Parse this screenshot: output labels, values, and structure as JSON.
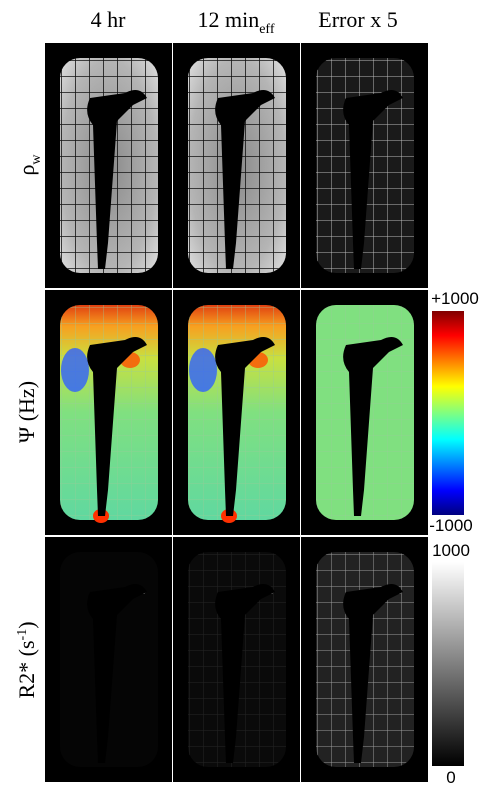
{
  "columns": [
    {
      "text": "4 hr"
    },
    {
      "text": "12 min",
      "sub": "eff"
    },
    {
      "text": "Error x 5"
    }
  ],
  "rows": [
    {
      "text": "ρ",
      "sub": "w"
    },
    {
      "text": "Ψ (Hz)"
    },
    {
      "text": "R2* (s",
      "sup": "-1",
      "after": ")"
    }
  ],
  "colorbars": [
    {
      "max": "+1000",
      "min": "-1000"
    },
    {
      "max": "1000",
      "min": "0"
    }
  ]
}
